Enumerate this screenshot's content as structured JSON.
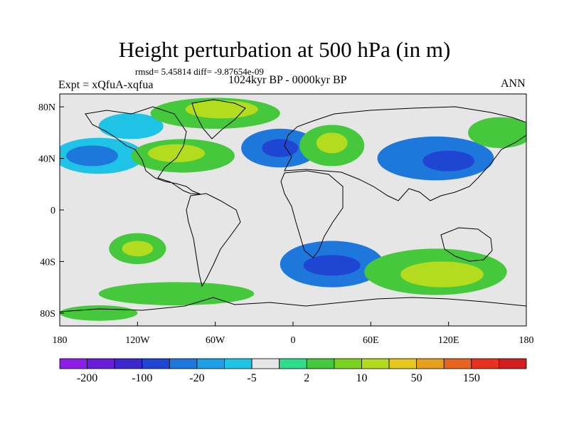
{
  "figure": {
    "title": "Height perturbation at 500 hPa (in m)",
    "stats": "rmsd= 5.45814 diff= -9.87654e-09",
    "period": "1024kyr BP - 0000kyr BP",
    "experiment": "Expt = xQfuA-xqfua",
    "season": "ANN"
  },
  "axes": {
    "x_ticks": [
      "180",
      "120W",
      "60W",
      "0",
      "60E",
      "120E",
      "180"
    ],
    "y_ticks": [
      "80N",
      "40N",
      "0",
      "40S",
      "80S"
    ]
  },
  "colorbar": {
    "colors": [
      "#8c1ee6",
      "#6a1cdc",
      "#3c28cc",
      "#1e46d2",
      "#1e78dc",
      "#1ea0e6",
      "#1ec3e6",
      "#e6e6e6",
      "#2ddc8c",
      "#46c83c",
      "#78d21e",
      "#b4dc1e",
      "#e6c81e",
      "#e6a01e",
      "#e6641e",
      "#e6321e",
      "#d21e1e"
    ],
    "labels": [
      "-200",
      "-100",
      "-20",
      "-5",
      "2",
      "10",
      "50",
      "150"
    ]
  },
  "map_data": {
    "projection": "cylindrical-equidistant",
    "lon_range": [
      -180,
      180
    ],
    "lat_range": [
      -90,
      90
    ],
    "blobs": [
      {
        "lon": -150,
        "lat": 42,
        "rx": 35,
        "ry": 14,
        "level": -5,
        "color": "#1ec3e6"
      },
      {
        "lon": -155,
        "lat": 42,
        "rx": 20,
        "ry": 8,
        "level": -20,
        "color": "#1e78dc"
      },
      {
        "lon": -125,
        "lat": 65,
        "rx": 25,
        "ry": 10,
        "level": -5,
        "color": "#1ec3e6"
      },
      {
        "lon": -60,
        "lat": 75,
        "rx": 50,
        "ry": 12,
        "level": 10,
        "color": "#46c83c"
      },
      {
        "lon": -55,
        "lat": 78,
        "rx": 28,
        "ry": 7,
        "level": 50,
        "color": "#b4dc1e"
      },
      {
        "lon": -85,
        "lat": 42,
        "rx": 40,
        "ry": 13,
        "level": 10,
        "color": "#46c83c"
      },
      {
        "lon": -90,
        "lat": 44,
        "rx": 22,
        "ry": 7,
        "level": 50,
        "color": "#b4dc1e"
      },
      {
        "lon": -10,
        "lat": 48,
        "rx": 30,
        "ry": 15,
        "level": -20,
        "color": "#1e78dc"
      },
      {
        "lon": -10,
        "lat": 48,
        "rx": 14,
        "ry": 7,
        "level": -100,
        "color": "#1e46d2"
      },
      {
        "lon": 30,
        "lat": 50,
        "rx": 25,
        "ry": 16,
        "level": 10,
        "color": "#46c83c"
      },
      {
        "lon": 30,
        "lat": 52,
        "rx": 12,
        "ry": 8,
        "level": 50,
        "color": "#b4dc1e"
      },
      {
        "lon": 110,
        "lat": 40,
        "rx": 45,
        "ry": 17,
        "level": -20,
        "color": "#1e78dc"
      },
      {
        "lon": 120,
        "lat": 38,
        "rx": 20,
        "ry": 8,
        "level": -100,
        "color": "#1e46d2"
      },
      {
        "lon": 160,
        "lat": 60,
        "rx": 25,
        "ry": 12,
        "level": 10,
        "color": "#46c83c"
      },
      {
        "lon": -120,
        "lat": -30,
        "rx": 22,
        "ry": 12,
        "level": 10,
        "color": "#46c83c"
      },
      {
        "lon": -120,
        "lat": -30,
        "rx": 12,
        "ry": 6,
        "level": 50,
        "color": "#b4dc1e"
      },
      {
        "lon": 30,
        "lat": -42,
        "rx": 40,
        "ry": 18,
        "level": -20,
        "color": "#1e78dc"
      },
      {
        "lon": 30,
        "lat": -43,
        "rx": 22,
        "ry": 8,
        "level": -100,
        "color": "#1e46d2"
      },
      {
        "lon": 110,
        "lat": -48,
        "rx": 55,
        "ry": 18,
        "level": 10,
        "color": "#46c83c"
      },
      {
        "lon": 115,
        "lat": -50,
        "rx": 32,
        "ry": 10,
        "level": 50,
        "color": "#b4dc1e"
      },
      {
        "lon": -90,
        "lat": -65,
        "rx": 60,
        "ry": 9,
        "level": 10,
        "color": "#46c83c"
      },
      {
        "lon": -150,
        "lat": -80,
        "rx": 30,
        "ry": 6,
        "level": 10,
        "color": "#46c83c"
      }
    ]
  }
}
